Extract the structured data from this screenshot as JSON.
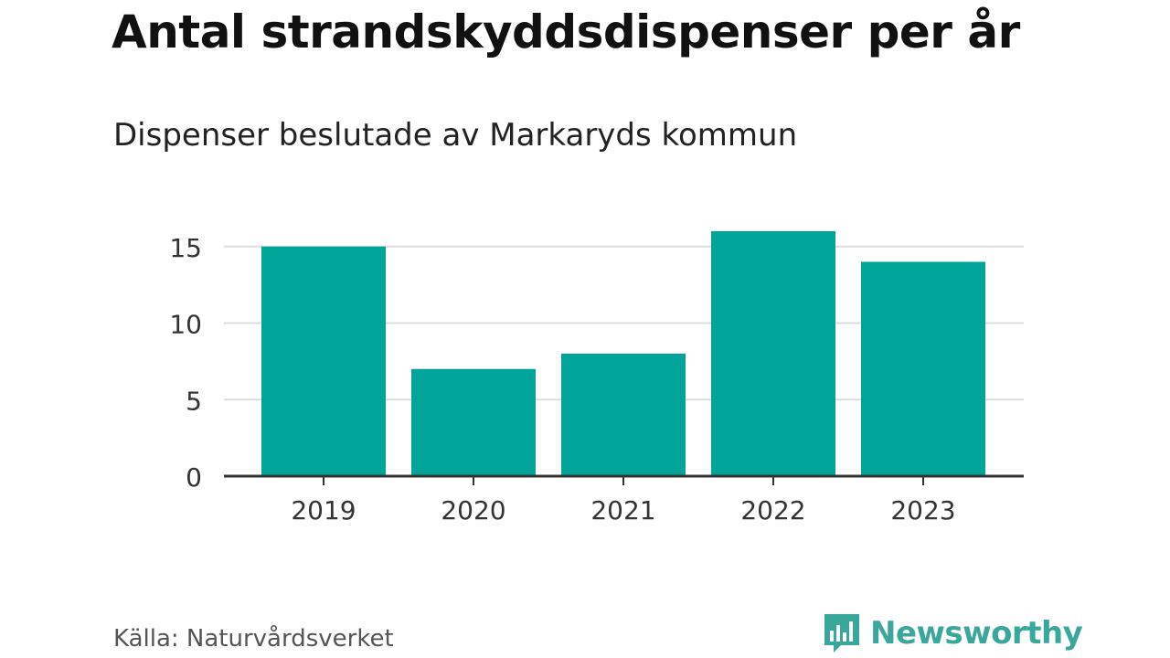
{
  "title": "Antal strandskyddsdispenser per år",
  "subtitle": "Dispenser beslutade av Markaryds kommun",
  "source": "Källa: Naturvårdsverket",
  "brand": {
    "name": "Newsworthy",
    "icon": "bar-chart-speech-bubble-icon",
    "color": "#3aa79c"
  },
  "colors": {
    "bar": "#00a499",
    "grid": "#dddddd",
    "axis": "#333333",
    "text": "#333333"
  },
  "chart_data": {
    "type": "bar",
    "title": "Antal strandskyddsdispenser per år",
    "subtitle": "Dispenser beslutade av Markaryds kommun",
    "categories": [
      "2019",
      "2020",
      "2021",
      "2022",
      "2023"
    ],
    "values": [
      15,
      7,
      8,
      16,
      14
    ],
    "yticks": [
      0,
      5,
      10,
      15
    ],
    "ylim": [
      0,
      16
    ],
    "grid": true,
    "legend": "none"
  }
}
